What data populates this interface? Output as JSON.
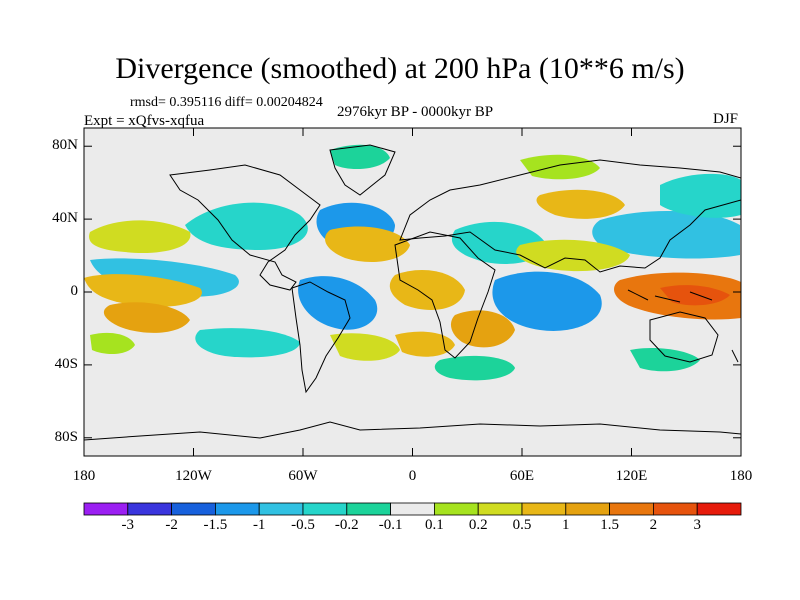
{
  "title": "Divergence (smoothed) at 200 hPa (10**6 m/s)",
  "stats": "rmsd= 0.395116 diff= 0.00204824",
  "experiment": "Expt = xQfvs-xqfua",
  "period": "2976kyr BP - 0000kyr BP",
  "season": "DJF",
  "map": {
    "lon_range": [
      -180,
      180
    ],
    "lat_range": [
      -90,
      90
    ],
    "lat_ticks": [
      {
        "value": 80,
        "label": "80N"
      },
      {
        "value": 40,
        "label": "40N"
      },
      {
        "value": 0,
        "label": "0"
      },
      {
        "value": -40,
        "label": "40S"
      },
      {
        "value": -80,
        "label": "80S"
      }
    ],
    "lon_ticks": [
      {
        "value": -180,
        "label": "180"
      },
      {
        "value": -120,
        "label": "120W"
      },
      {
        "value": -60,
        "label": "60W"
      },
      {
        "value": 0,
        "label": "0"
      },
      {
        "value": 60,
        "label": "60E"
      },
      {
        "value": 120,
        "label": "120E"
      },
      {
        "value": 180,
        "label": "180"
      }
    ]
  },
  "colorbar": {
    "colors": [
      "#9b1ff2",
      "#3a35dd",
      "#1760dc",
      "#1c98ea",
      "#31c1e2",
      "#26d5ca",
      "#1cd39a",
      "#ebebeb",
      "#a6e31f",
      "#d0dc21",
      "#e8b717",
      "#e5a210",
      "#e8760e",
      "#e6530d",
      "#e61b0b"
    ],
    "labels": [
      "-3",
      "-2",
      "-1.5",
      "-1",
      "-0.5",
      "-0.2",
      "-0.1",
      "0.1",
      "0.2",
      "0.5",
      "1",
      "1.5",
      "2",
      "3"
    ]
  },
  "colors": {
    "background": "#ffffff",
    "neutral_fill": "#ebebeb",
    "coastline": "#000000"
  }
}
